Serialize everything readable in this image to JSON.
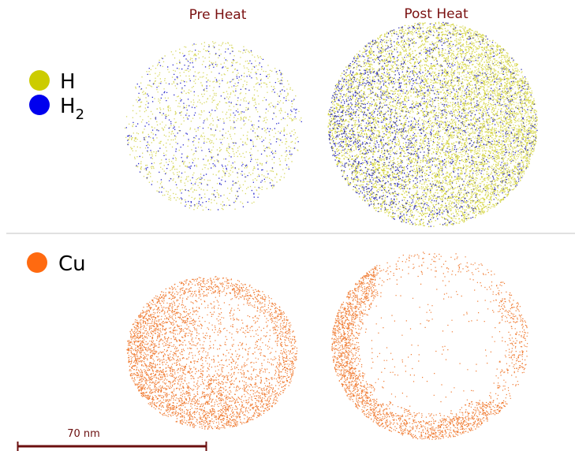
{
  "panels": {
    "pre_title": "Pre Heat",
    "post_title": "Post Heat"
  },
  "legend": {
    "h": "H",
    "h2": {
      "base": "H",
      "subscript": "2"
    },
    "cu": "Cu"
  },
  "scale_bar": {
    "label": "70 nm"
  }
}
